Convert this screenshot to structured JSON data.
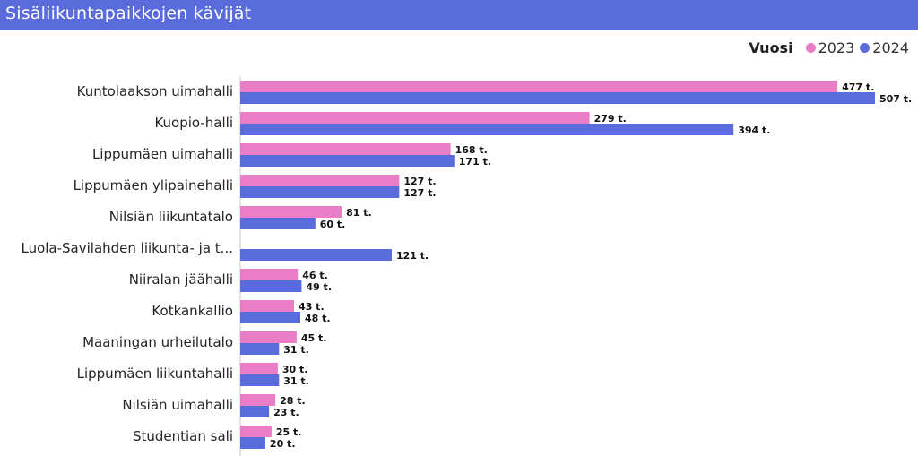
{
  "header": {
    "title": "Sisäliikuntapaikkojen kävijät"
  },
  "legend": {
    "title": "Vuosi",
    "items": [
      {
        "label": "2023",
        "color": "#e97ec6"
      },
      {
        "label": "2024",
        "color": "#5a6bdc"
      }
    ]
  },
  "chart_data": {
    "type": "bar",
    "orientation": "horizontal",
    "title": "Sisäliikuntapaikkojen kävijät",
    "legend_title": "Vuosi",
    "legend_position": "top-right",
    "categories": [
      "Kuntolaakson uimahalli",
      "Kuopio-halli",
      "Lippumäen uimahalli",
      "Lippumäen ylipainehalli",
      "Nilsiän liikuntatalo",
      "Luola-Savilahden liikunta- ja t...",
      "Niiralan jäähalli",
      "Kotkankallio",
      "Maaningan urheilutalo",
      "Lippumäen liikuntahalli",
      "Nilsiän uimahalli",
      "Studentian sali"
    ],
    "series": [
      {
        "name": "2023",
        "color": "#e97ec6",
        "values": [
          477,
          279,
          168,
          127,
          81,
          null,
          46,
          43,
          45,
          30,
          28,
          25
        ],
        "labels": [
          "477 t.",
          "279 t.",
          "168 t.",
          "127 t.",
          "81 t.",
          "",
          "46 t.",
          "43 t.",
          "45 t.",
          "30 t.",
          "28 t.",
          "25 t."
        ]
      },
      {
        "name": "2024",
        "color": "#5a6bdc",
        "values": [
          507,
          394,
          171,
          127,
          60,
          121,
          49,
          48,
          31,
          31,
          23,
          20
        ],
        "labels": [
          "507 t.",
          "394 t.",
          "171 t.",
          "127 t.",
          "60 t.",
          "121 t.",
          "49 t.",
          "48 t.",
          "31 t.",
          "31 t.",
          "23 t.",
          "20 t."
        ]
      }
    ],
    "xlim": [
      0,
      507
    ],
    "grid": false
  }
}
